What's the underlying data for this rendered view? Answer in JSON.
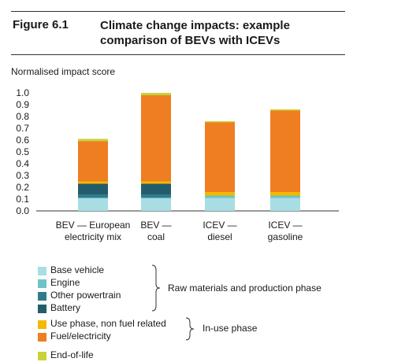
{
  "figure": {
    "label": "Figure 6.1",
    "title": "Climate change impacts: example comparison of BEVs with ICEVs"
  },
  "colors": {
    "base_vehicle": "#a8dde3",
    "engine": "#6fc3c6",
    "other_powertrain": "#2f7d8c",
    "battery": "#255c6b",
    "use_phase": "#f5b800",
    "fuel": "#ef7d22",
    "end_of_life": "#c8d23a"
  },
  "legend": {
    "items": [
      {
        "label": "Base vehicle",
        "color": "#a8dde3"
      },
      {
        "label": "Engine",
        "color": "#6fc3c6"
      },
      {
        "label": "Other powertrain",
        "color": "#2f7d8c"
      },
      {
        "label": "Battery",
        "color": "#255c6b"
      },
      {
        "label": "Use phase, non fuel related",
        "color": "#f5b800"
      },
      {
        "label": "Fuel/electricity",
        "color": "#ef7d22"
      },
      {
        "label": "End-of-life",
        "color": "#c8d23a"
      }
    ],
    "groups": {
      "production": "Raw materials and production phase",
      "in_use": "In-use phase"
    }
  },
  "chart_data": {
    "type": "bar",
    "stacked": true,
    "ylabel": "Normalised impact score",
    "ylim": [
      0,
      1.0
    ],
    "yticks": [
      "1.0",
      "0.9",
      "0.8",
      "0.7",
      "0.6",
      "0.5",
      "0.4",
      "0.3",
      "0.2",
      "0.1",
      "0.0"
    ],
    "categories": [
      [
        "BEV — European",
        "electricity mix"
      ],
      [
        "BEV —",
        "coal"
      ],
      [
        "ICEV —",
        "diesel"
      ],
      [
        "ICEV —",
        "gasoline"
      ]
    ],
    "series": [
      {
        "name": "Base vehicle",
        "values": [
          0.11,
          0.11,
          0.11,
          0.11
        ]
      },
      {
        "name": "Engine",
        "values": [
          0.0,
          0.0,
          0.02,
          0.02
        ]
      },
      {
        "name": "Other powertrain",
        "values": [
          0.03,
          0.03,
          0.0,
          0.0
        ]
      },
      {
        "name": "Battery",
        "values": [
          0.09,
          0.09,
          0.0,
          0.0
        ]
      },
      {
        "name": "Use phase, non fuel related",
        "values": [
          0.02,
          0.02,
          0.03,
          0.03
        ]
      },
      {
        "name": "Fuel/electricity",
        "values": [
          0.34,
          0.73,
          0.59,
          0.69
        ]
      },
      {
        "name": "End-of-life",
        "values": [
          0.02,
          0.02,
          0.01,
          0.01
        ]
      }
    ],
    "grid": false,
    "legend_position": "bottom-left"
  }
}
